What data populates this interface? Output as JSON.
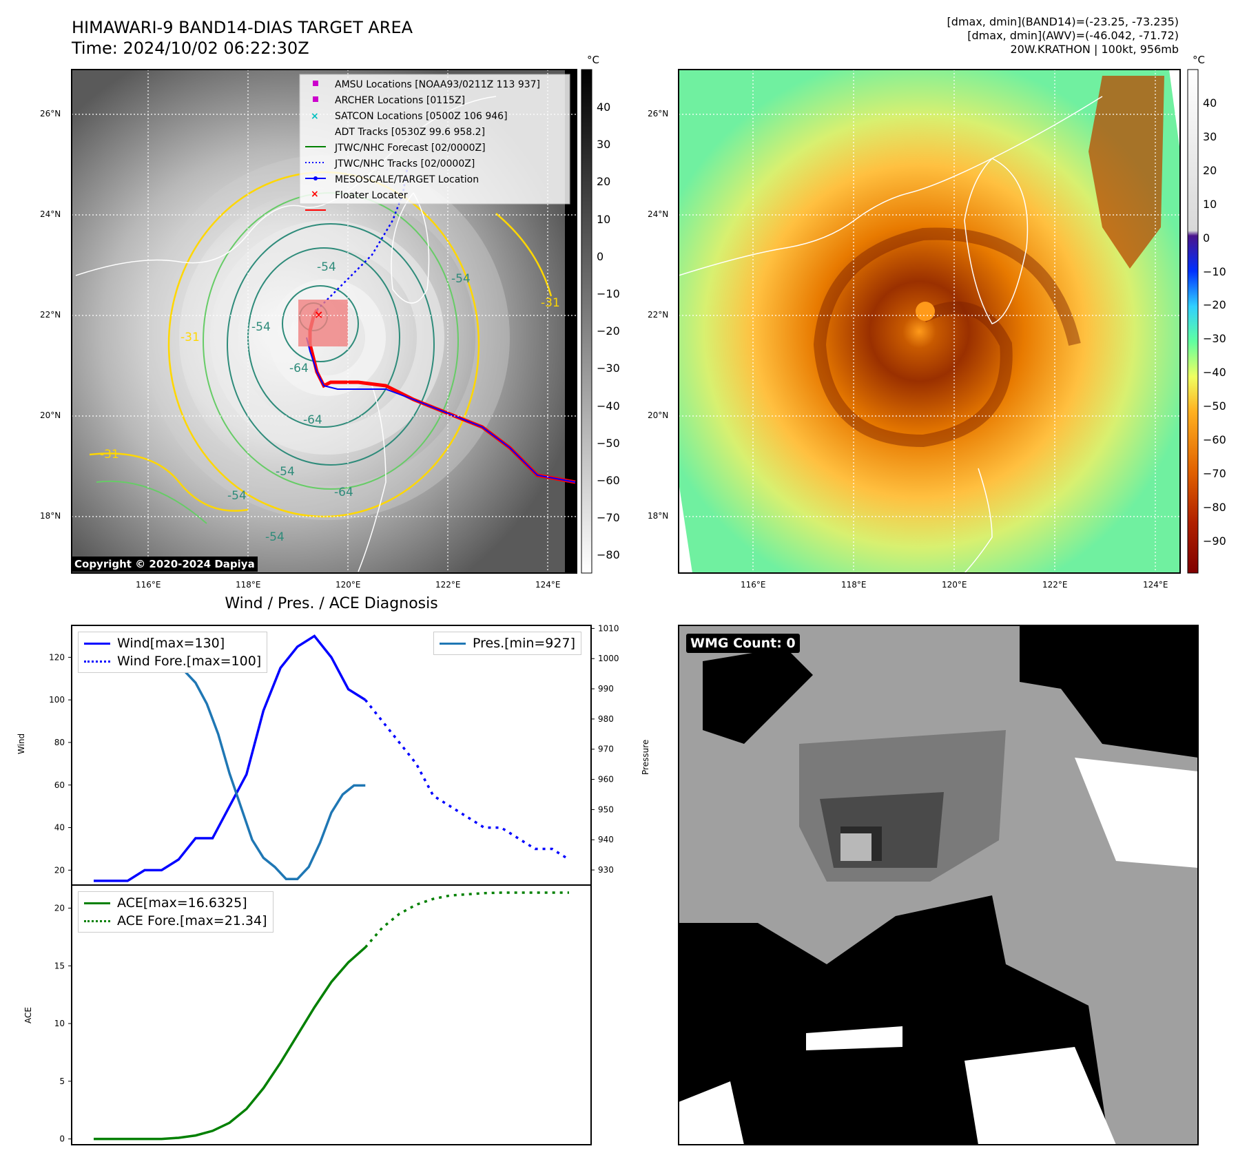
{
  "header": {
    "title": "HIMAWARI-9 BAND14-DIAS TARGET AREA",
    "time": "Time: 2024/10/02 06:22:30Z",
    "dmax_band14": "[dmax, dmin](BAND14)=(-23.25, -73.235)",
    "dmax_awv": "[dmax, dmin](AWV)=(-46.042, -71.72)",
    "storm": "20W.KRATHON | 100kt, 956mb"
  },
  "map": {
    "lat_labels": [
      "26°N",
      "24°N",
      "22°N",
      "20°N",
      "18°N"
    ],
    "lon_labels": [
      "116°E",
      "118°E",
      "120°E",
      "122°E",
      "124°E"
    ],
    "copyright": "Copyright © 2020-2024 Dapiya",
    "contour_labels": [
      "-54",
      "-54",
      "-64",
      "-54",
      "-64",
      "-54",
      "-54",
      "-31",
      "-31",
      "-31",
      "-54",
      "-64"
    ],
    "legend": [
      {
        "label": "AMSU Locations [NOAA93/0211Z 113 937]",
        "marker": "square",
        "color": "#cc00cc"
      },
      {
        "label": "ARCHER Locations [0115Z]",
        "marker": "square",
        "color": "#cc00cc"
      },
      {
        "label": "SATCON Locations [0500Z 106 946]",
        "marker": "x",
        "color": "#00bfbf"
      },
      {
        "label": "ADT Tracks [0530Z 99.6 958.2]",
        "marker": "line",
        "color": "#008000"
      },
      {
        "label": "JTWC/NHC Forecast [02/0000Z]",
        "marker": "dotted",
        "color": "#0000ff"
      },
      {
        "label": "JTWC/NHC Tracks [02/0000Z]",
        "marker": "line-dot",
        "color": "#0000ff"
      },
      {
        "label": "MESOSCALE/TARGET Location",
        "marker": "x",
        "color": "#ff0000"
      },
      {
        "label": "Floater Locater",
        "marker": "line",
        "color": "#ff0000"
      }
    ]
  },
  "colorbar_left": {
    "unit": "°C",
    "ticks": [
      "40",
      "30",
      "20",
      "10",
      "0",
      "−10",
      "−20",
      "−30",
      "−40",
      "−50",
      "−60",
      "−70",
      "−80"
    ]
  },
  "colorbar_right": {
    "unit": "°C",
    "ticks": [
      "40",
      "30",
      "20",
      "10",
      "0",
      "−10",
      "−20",
      "−30",
      "−40",
      "−50",
      "−60",
      "−70",
      "−80",
      "−90"
    ]
  },
  "wmg": {
    "label": "WMG Count: 0"
  },
  "chart_data": [
    {
      "type": "line",
      "title": "Wind / Pres. / ACE Diagnosis",
      "ylabel": "Wind",
      "ylabel_right": "Pressure",
      "ylim": [
        13,
        135
      ],
      "ylim_right": [
        925,
        1011
      ],
      "yticks": [
        20,
        40,
        60,
        80,
        100,
        120
      ],
      "yticks_right": [
        930,
        940,
        950,
        960,
        970,
        980,
        990,
        1000,
        1010
      ],
      "legend_left": [
        "Wind[max=130]",
        "Wind Fore.[max=100]"
      ],
      "legend_right": [
        "Pres.[min=927]"
      ],
      "series": [
        {
          "name": "Wind[max=130]",
          "style": "solid",
          "color": "#0000ff",
          "axis": "left",
          "x": [
            0,
            3,
            6,
            9,
            12,
            15,
            18,
            21,
            24,
            27,
            30,
            33,
            36,
            39,
            42,
            45,
            48
          ],
          "values": [
            15,
            15,
            15,
            20,
            20,
            25,
            35,
            35,
            50,
            65,
            95,
            115,
            125,
            130,
            120,
            105,
            100
          ]
        },
        {
          "name": "Wind Fore.[max=100]",
          "style": "dotted",
          "color": "#0000ff",
          "axis": "left",
          "x": [
            48,
            51,
            54,
            57,
            60,
            63,
            66,
            69,
            72,
            75,
            78,
            81,
            84
          ],
          "values": [
            100,
            90,
            80,
            70,
            55,
            50,
            45,
            40,
            40,
            35,
            30,
            30,
            25
          ]
        },
        {
          "name": "Pres.[min=927]",
          "style": "solid",
          "color": "#1f77b4",
          "axis": "right",
          "x": [
            0,
            2,
            4,
            6,
            8,
            10,
            12,
            14,
            16,
            18,
            20,
            22,
            24,
            26,
            28,
            30,
            32,
            34,
            36,
            38,
            40,
            42,
            44,
            46,
            48
          ],
          "values": [
            1008,
            1008,
            1006,
            1004,
            1002,
            1002,
            1000,
            998,
            996,
            992,
            985,
            975,
            962,
            951,
            940,
            934,
            931,
            927,
            927,
            931,
            939,
            949,
            955,
            958,
            958
          ]
        }
      ]
    },
    {
      "type": "line",
      "ylabel": "ACE",
      "ylim": [
        -0.5,
        22
      ],
      "yticks": [
        0,
        5,
        10,
        15,
        20
      ],
      "series": [
        {
          "name": "ACE[max=16.6325]",
          "style": "solid",
          "color": "#008000",
          "x": [
            0,
            3,
            6,
            9,
            12,
            15,
            18,
            21,
            24,
            27,
            30,
            33,
            36,
            39,
            42,
            45,
            48
          ],
          "values": [
            0,
            0,
            0,
            0,
            0,
            0.1,
            0.3,
            0.7,
            1.4,
            2.6,
            4.4,
            6.6,
            9.0,
            11.4,
            13.6,
            15.3,
            16.6
          ]
        },
        {
          "name": "ACE Fore.[max=21.34]",
          "style": "dotted",
          "color": "#008000",
          "x": [
            48,
            51,
            54,
            57,
            60,
            63,
            66,
            69,
            72,
            75,
            78,
            81,
            84
          ],
          "values": [
            16.6,
            18.3,
            19.5,
            20.3,
            20.8,
            21.1,
            21.2,
            21.3,
            21.34,
            21.34,
            21.34,
            21.34,
            21.34
          ]
        }
      ]
    }
  ]
}
